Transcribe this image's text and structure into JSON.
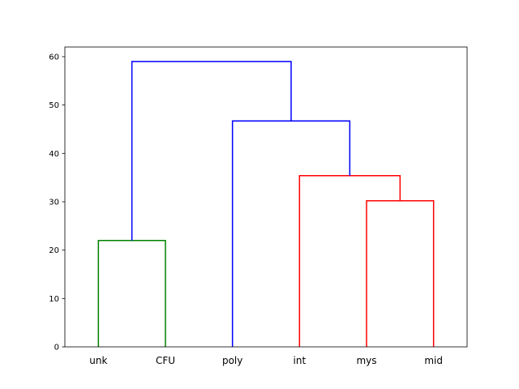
{
  "chart_data": {
    "type": "dendrogram",
    "leaves": [
      "unk",
      "CFU",
      "poly",
      "int",
      "mys",
      "mid"
    ],
    "y_ticks": [
      0,
      10,
      20,
      30,
      40,
      50,
      60
    ],
    "ylim": [
      0,
      62
    ],
    "grid": false,
    "merges": [
      {
        "left": [
          "leaf",
          0
        ],
        "right": [
          "leaf",
          1
        ],
        "height": 22.0,
        "color": "#008000"
      },
      {
        "left": [
          "leaf",
          4
        ],
        "right": [
          "leaf",
          5
        ],
        "height": 30.2,
        "color": "#ff0000"
      },
      {
        "left": [
          "leaf",
          3
        ],
        "right": [
          "merge",
          1
        ],
        "height": 35.4,
        "color": "#ff0000"
      },
      {
        "left": [
          "leaf",
          2
        ],
        "right": [
          "merge",
          2
        ],
        "height": 46.7,
        "color": "#0000ff"
      },
      {
        "left": [
          "merge",
          0
        ],
        "right": [
          "merge",
          3
        ],
        "height": 59.0,
        "color": "#0000ff"
      }
    ]
  }
}
